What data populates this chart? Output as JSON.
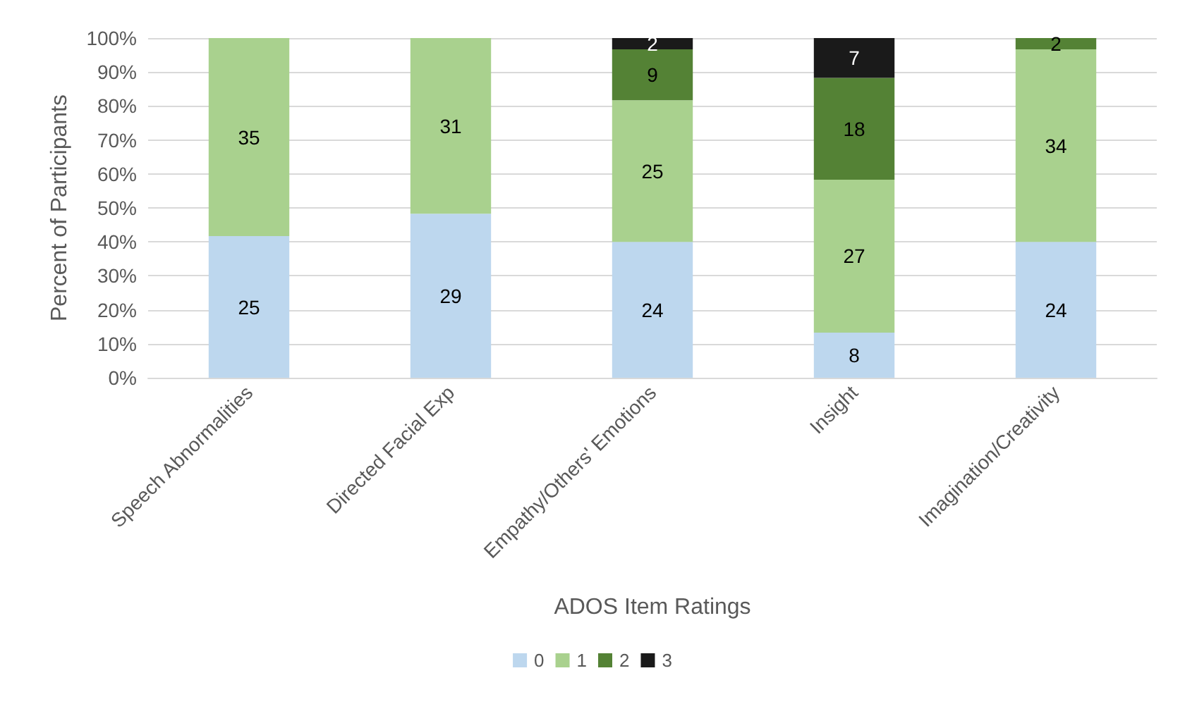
{
  "chart_data": {
    "type": "bar",
    "stacked": true,
    "xlabel": "ADOS Item Ratings",
    "ylabel": "Percent of Participants",
    "categories": [
      "Speech Abnormalities",
      "Directed Facial Exp",
      "Empathy/Others' Emotions",
      "Insight",
      "Imagination/Creativity"
    ],
    "series": [
      {
        "name": "0",
        "color": "#bdd7ee",
        "values": [
          41.7,
          48.3,
          40,
          13.3,
          40
        ]
      },
      {
        "name": "1",
        "color": "#a9d18e",
        "values": [
          58.3,
          51.7,
          41.7,
          45,
          56.7
        ]
      },
      {
        "name": "2",
        "color": "#548235",
        "values": [
          0,
          0,
          15,
          30,
          3.3
        ]
      },
      {
        "name": "3",
        "color": "#1a1a1a",
        "values": [
          0,
          0,
          3.3,
          11.7,
          0
        ]
      }
    ],
    "annotations": [
      "25",
      "35",
      "29",
      "31",
      "24",
      "25",
      "9",
      "2",
      "8",
      "27",
      "18",
      "7",
      "24",
      "34",
      "2"
    ],
    "ylim": [
      0,
      100
    ],
    "yticks": [
      {
        "value": 0,
        "label": "0%"
      },
      {
        "value": 10,
        "label": "10%"
      },
      {
        "value": 20,
        "label": "20%"
      },
      {
        "value": 30,
        "label": "30%"
      },
      {
        "value": 40,
        "label": "40%"
      },
      {
        "value": 50,
        "label": "50%"
      },
      {
        "value": 60,
        "label": "60%"
      },
      {
        "value": 70,
        "label": "70%"
      },
      {
        "value": 80,
        "label": "80%"
      },
      {
        "value": 90,
        "label": "90%"
      },
      {
        "value": 100,
        "label": "100%"
      }
    ],
    "grid": "y",
    "legend": "bottom"
  }
}
